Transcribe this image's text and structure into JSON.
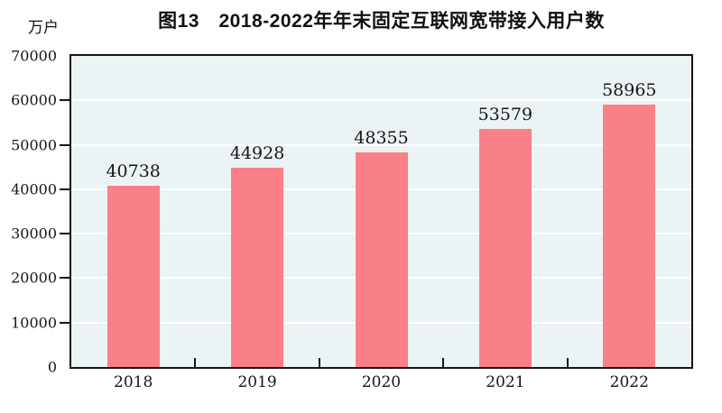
{
  "chart_data": {
    "type": "bar",
    "title": "图13　2018-2022年年末固定互联网宽带接入用户数",
    "unit_label": "万户",
    "categories": [
      "2018",
      "2019",
      "2020",
      "2021",
      "2022"
    ],
    "values": [
      40738,
      44928,
      48355,
      53579,
      58965
    ],
    "value_labels": [
      "40738",
      "44928",
      "48355",
      "53579",
      "58965"
    ],
    "ylim": [
      0,
      70000
    ],
    "ytick_step": 10000,
    "ytick_labels": [
      "0",
      "10000",
      "20000",
      "30000",
      "40000",
      "50000",
      "60000",
      "70000"
    ],
    "grid": true,
    "legend": "none",
    "colors": {
      "bar": "#f98087",
      "plot_background": "#ebf3f4",
      "gridline": "#ffffff",
      "axis": "#161616",
      "text": "#161616"
    }
  }
}
